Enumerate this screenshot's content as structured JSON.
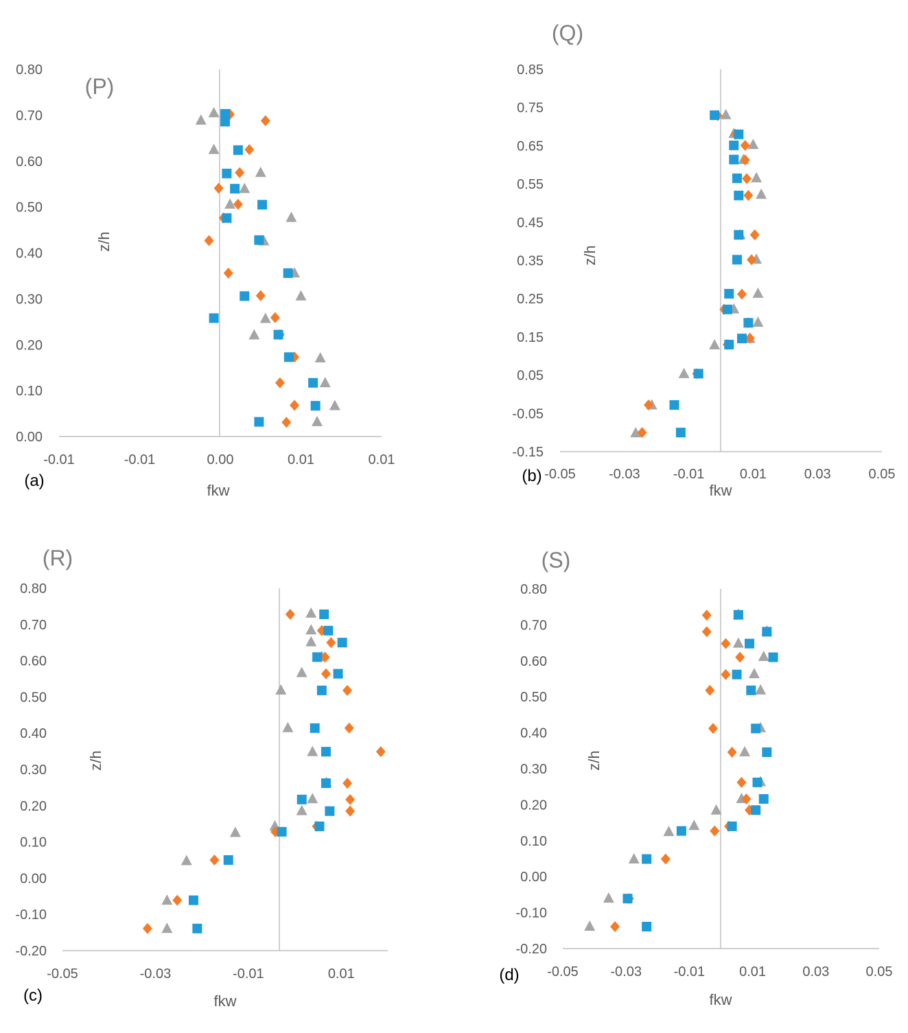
{
  "chart_data": [
    {
      "type": "scatter",
      "id": "a",
      "title": "(P)",
      "panel_label": "(a)",
      "xlabel": "fkw",
      "ylabel": "z/h",
      "xlim": [
        -0.02,
        0.02
      ],
      "ylim": [
        0.0,
        0.8
      ],
      "x_tick_labels": [
        "-0.01",
        "-0.01",
        "0.00",
        "0.01",
        "0.01"
      ],
      "y_tick_labels": [
        "0.00",
        "0.10",
        "0.20",
        "0.30",
        "0.40",
        "0.50",
        "0.60",
        "0.70",
        "0.80"
      ],
      "series": [
        {
          "name": "series-1",
          "marker": "square",
          "color": "#1f9bd7",
          "points": [
            [
              0.0006,
              0.703
            ],
            [
              0.0006,
              0.686
            ],
            [
              0.0022,
              0.624
            ],
            [
              0.0008,
              0.573
            ],
            [
              0.0018,
              0.54
            ],
            [
              0.0052,
              0.505
            ],
            [
              0.0008,
              0.476
            ],
            [
              0.0048,
              0.428
            ],
            [
              0.0084,
              0.356
            ],
            [
              0.003,
              0.306
            ],
            [
              -0.0008,
              0.258
            ],
            [
              0.0072,
              0.222
            ],
            [
              0.0085,
              0.173
            ],
            [
              0.0115,
              0.117
            ],
            [
              0.0118,
              0.067
            ],
            [
              0.0048,
              0.032
            ]
          ]
        },
        {
          "name": "series-2",
          "marker": "diamond",
          "color": "#f47b27",
          "points": [
            [
              0.0012,
              0.702
            ],
            [
              0.0056,
              0.688
            ],
            [
              0.0036,
              0.625
            ],
            [
              0.0024,
              0.575
            ],
            [
              -0.0002,
              0.541
            ],
            [
              0.0022,
              0.506
            ],
            [
              0.0004,
              0.476
            ],
            [
              -0.0014,
              0.427
            ],
            [
              0.001,
              0.356
            ],
            [
              0.005,
              0.307
            ],
            [
              0.0068,
              0.259
            ],
            [
              0.0074,
              0.222
            ],
            [
              0.0092,
              0.173
            ],
            [
              0.0074,
              0.117
            ],
            [
              0.0092,
              0.068
            ],
            [
              0.0082,
              0.031
            ]
          ]
        },
        {
          "name": "series-3",
          "marker": "triangle",
          "color": "#a5a5a5",
          "points": [
            [
              -0.0008,
              0.706
            ],
            [
              -0.0024,
              0.69
            ],
            [
              -0.0008,
              0.626
            ],
            [
              0.005,
              0.576
            ],
            [
              0.003,
              0.541
            ],
            [
              0.0012,
              0.507
            ],
            [
              0.0088,
              0.478
            ],
            [
              0.0054,
              0.427
            ],
            [
              0.0092,
              0.357
            ],
            [
              0.01,
              0.307
            ],
            [
              0.0056,
              0.258
            ],
            [
              0.0042,
              0.222
            ],
            [
              0.0124,
              0.172
            ],
            [
              0.013,
              0.118
            ],
            [
              0.0142,
              0.068
            ],
            [
              0.012,
              0.033
            ]
          ]
        }
      ]
    },
    {
      "type": "scatter",
      "id": "b",
      "title": "(Q)",
      "panel_label": "(b)",
      "xlabel": "fkw",
      "ylabel": "z/h",
      "xlim": [
        -0.05,
        0.05
      ],
      "ylim": [
        -0.15,
        0.85
      ],
      "x_tick_labels": [
        "-0.05",
        "-0.03",
        "-0.01",
        "0.01",
        "0.03",
        "0.05"
      ],
      "y_tick_labels": [
        "-0.15",
        "-0.05",
        "0.05",
        "0.15",
        "0.25",
        "0.35",
        "0.45",
        "0.55",
        "0.65",
        "0.75",
        "0.85"
      ],
      "series": [
        {
          "name": "series-1",
          "marker": "square",
          "color": "#1f9bd7",
          "points": [
            [
              -0.002,
              0.73
            ],
            [
              0.0055,
              0.68
            ],
            [
              0.004,
              0.651
            ],
            [
              0.004,
              0.614
            ],
            [
              0.005,
              0.565
            ],
            [
              0.0055,
              0.52
            ],
            [
              0.0055,
              0.417
            ],
            [
              0.005,
              0.352
            ],
            [
              0.0025,
              0.263
            ],
            [
              0.002,
              0.222
            ],
            [
              0.0085,
              0.187
            ],
            [
              0.0065,
              0.146
            ],
            [
              0.0025,
              0.13
            ],
            [
              -0.007,
              0.054
            ],
            [
              -0.0145,
              -0.028
            ],
            [
              -0.0125,
              -0.1
            ]
          ]
        },
        {
          "name": "series-2",
          "marker": "diamond",
          "color": "#f47b27",
          "points": [
            [
              -0.001,
              0.729
            ],
            [
              0.0045,
              0.68
            ],
            [
              0.0075,
              0.651
            ],
            [
              0.0075,
              0.613
            ],
            [
              0.008,
              0.564
            ],
            [
              0.0085,
              0.52
            ],
            [
              0.0105,
              0.417
            ],
            [
              0.0095,
              0.352
            ],
            [
              0.0065,
              0.262
            ],
            [
              0.001,
              0.222
            ],
            [
              0.0085,
              0.187
            ],
            [
              0.009,
              0.147
            ],
            [
              0.002,
              0.13
            ],
            [
              -0.0075,
              0.054
            ],
            [
              -0.0225,
              -0.028
            ],
            [
              -0.0245,
              -0.1
            ]
          ]
        },
        {
          "name": "series-3",
          "marker": "triangle",
          "color": "#a5a5a5",
          "points": [
            [
              0.0015,
              0.732
            ],
            [
              0.004,
              0.683
            ],
            [
              0.01,
              0.654
            ],
            [
              0.007,
              0.615
            ],
            [
              0.011,
              0.567
            ],
            [
              0.0125,
              0.524
            ],
            [
              0.006,
              0.418
            ],
            [
              0.011,
              0.354
            ],
            [
              0.0115,
              0.265
            ],
            [
              0.004,
              0.224
            ],
            [
              0.0115,
              0.189
            ],
            [
              0.009,
              0.147
            ],
            [
              -0.002,
              0.13
            ],
            [
              -0.0115,
              0.055
            ],
            [
              -0.0215,
              -0.027
            ],
            [
              -0.0265,
              -0.1
            ]
          ]
        }
      ]
    },
    {
      "type": "scatter",
      "id": "c",
      "title": "(R)",
      "panel_label": "(c)",
      "xlabel": "fkw",
      "ylabel": "z/h",
      "xlim": [
        -0.05,
        0.02
      ],
      "ylim": [
        -0.2,
        0.8
      ],
      "x_tick_labels": [
        "-0.05",
        "-0.03",
        "-0.01",
        "0.01"
      ],
      "y_tick_labels": [
        "-0.20",
        "-0.10",
        "0.00",
        "0.10",
        "0.20",
        "0.30",
        "0.40",
        "0.50",
        "0.60",
        "0.70",
        "0.80"
      ],
      "series": [
        {
          "name": "series-1",
          "marker": "square",
          "color": "#1f9bd7",
          "points": [
            [
              0.0063,
              0.728
            ],
            [
              0.0072,
              0.683
            ],
            [
              0.0102,
              0.65
            ],
            [
              0.0048,
              0.61
            ],
            [
              0.0093,
              0.564
            ],
            [
              0.0058,
              0.518
            ],
            [
              0.0043,
              0.414
            ],
            [
              0.0067,
              0.349
            ],
            [
              0.0067,
              0.262
            ],
            [
              0.0015,
              0.217
            ],
            [
              0.0075,
              0.185
            ],
            [
              0.0053,
              0.143
            ],
            [
              -0.0028,
              0.128
            ],
            [
              -0.0143,
              0.05
            ],
            [
              -0.0218,
              -0.061
            ],
            [
              -0.021,
              -0.139
            ]
          ]
        },
        {
          "name": "series-2",
          "marker": "diamond",
          "color": "#f47b27",
          "points": [
            [
              -0.001,
              0.728
            ],
            [
              0.0058,
              0.683
            ],
            [
              0.0078,
              0.65
            ],
            [
              0.0065,
              0.61
            ],
            [
              0.0067,
              0.564
            ],
            [
              0.0113,
              0.518
            ],
            [
              0.0117,
              0.414
            ],
            [
              0.0185,
              0.349
            ],
            [
              0.0113,
              0.262
            ],
            [
              0.0119,
              0.217
            ],
            [
              0.0119,
              0.185
            ],
            [
              0.0047,
              0.143
            ],
            [
              -0.0042,
              0.128
            ],
            [
              -0.0173,
              0.05
            ],
            [
              -0.0253,
              -0.061
            ],
            [
              -0.0317,
              -0.139
            ]
          ]
        },
        {
          "name": "series-3",
          "marker": "triangle",
          "color": "#a5a5a5",
          "points": [
            [
              0.0035,
              0.732
            ],
            [
              0.0035,
              0.686
            ],
            [
              0.0035,
              0.653
            ],
            [
              0.0058,
              0.612
            ],
            [
              0.0015,
              0.568
            ],
            [
              -0.003,
              0.52
            ],
            [
              -0.0015,
              0.416
            ],
            [
              0.0038,
              0.35
            ],
            [
              0.0068,
              0.265
            ],
            [
              0.0038,
              0.22
            ],
            [
              0.0015,
              0.187
            ],
            [
              -0.0043,
              0.145
            ],
            [
              -0.0128,
              0.127
            ],
            [
              -0.0233,
              0.049
            ],
            [
              -0.0275,
              -0.06
            ],
            [
              -0.0275,
              -0.138
            ]
          ]
        }
      ]
    },
    {
      "type": "scatter",
      "id": "d",
      "title": "(S)",
      "panel_label": "(d)",
      "xlabel": "fkw",
      "ylabel": "z/h",
      "xlim": [
        -0.05,
        0.05
      ],
      "ylim": [
        -0.2,
        0.8
      ],
      "x_tick_labels": [
        "-0.05",
        "-0.03",
        "-0.01",
        "0.01",
        "0.03",
        "0.05"
      ],
      "y_tick_labels": [
        "-0.20",
        "-0.10",
        "0.00",
        "0.10",
        "0.20",
        "0.30",
        "0.40",
        "0.50",
        "0.60",
        "0.70",
        "0.80"
      ],
      "series": [
        {
          "name": "series-1",
          "marker": "square",
          "color": "#1f9bd7",
          "points": [
            [
              0.0055,
              0.728
            ],
            [
              0.0145,
              0.681
            ],
            [
              0.009,
              0.648
            ],
            [
              0.0165,
              0.61
            ],
            [
              0.005,
              0.562
            ],
            [
              0.0095,
              0.518
            ],
            [
              0.011,
              0.412
            ],
            [
              0.0145,
              0.346
            ],
            [
              0.0115,
              0.262
            ],
            [
              0.0135,
              0.216
            ],
            [
              0.011,
              0.185
            ],
            [
              0.0035,
              0.14
            ],
            [
              -0.0125,
              0.127
            ],
            [
              -0.0235,
              0.049
            ],
            [
              -0.0295,
              -0.061
            ],
            [
              -0.0235,
              -0.139
            ]
          ]
        },
        {
          "name": "series-2",
          "marker": "diamond",
          "color": "#f47b27",
          "points": [
            [
              -0.0045,
              0.727
            ],
            [
              -0.0045,
              0.681
            ],
            [
              0.0015,
              0.648
            ],
            [
              0.006,
              0.61
            ],
            [
              0.0015,
              0.562
            ],
            [
              -0.0035,
              0.518
            ],
            [
              -0.0025,
              0.412
            ],
            [
              0.0035,
              0.346
            ],
            [
              0.0065,
              0.262
            ],
            [
              0.008,
              0.216
            ],
            [
              0.009,
              0.185
            ],
            [
              0.0025,
              0.14
            ],
            [
              -0.002,
              0.127
            ],
            [
              -0.0175,
              0.049
            ],
            [
              -0.029,
              -0.061
            ],
            [
              -0.0335,
              -0.139
            ]
          ]
        },
        {
          "name": "series-3",
          "marker": "triangle",
          "color": "#a5a5a5",
          "points": [
            [
              0.0055,
              0.73
            ],
            [
              0.0145,
              0.684
            ],
            [
              0.0055,
              0.65
            ],
            [
              0.0135,
              0.613
            ],
            [
              0.0105,
              0.565
            ],
            [
              0.0125,
              0.52
            ],
            [
              0.0125,
              0.415
            ],
            [
              0.0075,
              0.348
            ],
            [
              0.0125,
              0.265
            ],
            [
              0.0065,
              0.218
            ],
            [
              -0.0015,
              0.186
            ],
            [
              -0.0085,
              0.143
            ],
            [
              -0.0165,
              0.126
            ],
            [
              -0.0275,
              0.05
            ],
            [
              -0.0355,
              -0.059
            ],
            [
              -0.0415,
              -0.137
            ]
          ]
        }
      ]
    }
  ]
}
